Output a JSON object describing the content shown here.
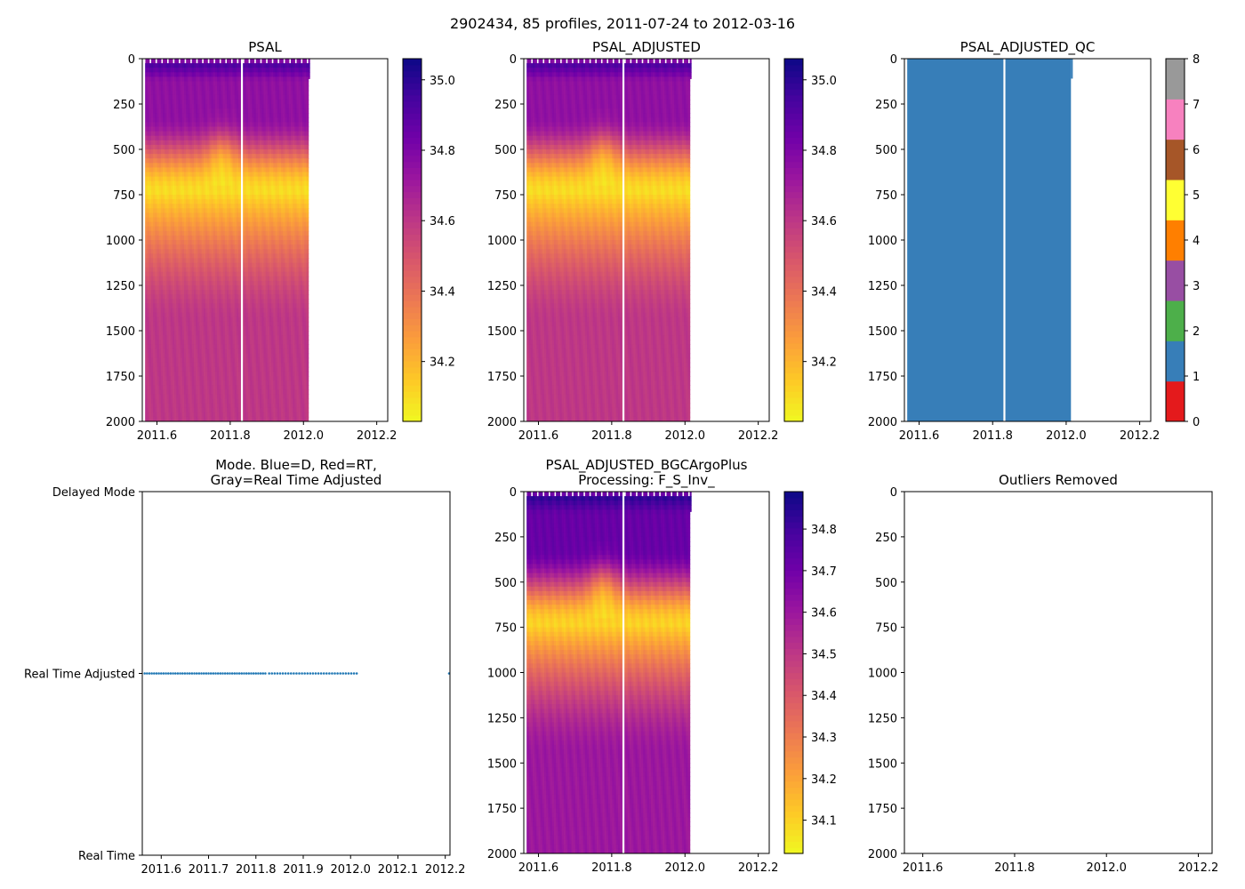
{
  "suptitle": "2902434, 85 profiles, 2011-07-24 to 2012-03-16",
  "colors": {
    "plasma": [
      "#0d0887",
      "#46039f",
      "#7201a8",
      "#9c179e",
      "#bd3786",
      "#d8576b",
      "#ed7953",
      "#fb9f3a",
      "#fdca26",
      "#f0f921"
    ],
    "qc": [
      "#e41a1c",
      "#377eb8",
      "#4daf4a",
      "#984ea3",
      "#ff7f00",
      "#ffff33",
      "#a65628",
      "#f781bf",
      "#999999"
    ],
    "mode_point": "#1f77b4",
    "gap_line": "#ffffff"
  },
  "chart_data": [
    {
      "id": "psal",
      "type": "heatmap",
      "title": "PSAL",
      "x_ticks": [
        "2011.6",
        "2011.8",
        "2012.0",
        "2012.2"
      ],
      "x_tick_values": [
        2011.6,
        2011.8,
        2012.0,
        2012.2
      ],
      "xlim": [
        2011.56,
        2012.23
      ],
      "y_ticks": [
        "0",
        "250",
        "500",
        "750",
        "1000",
        "1250",
        "1500",
        "1750",
        "2000"
      ],
      "y_tick_values": [
        0,
        250,
        500,
        750,
        1000,
        1250,
        1500,
        1750,
        2000
      ],
      "ylim": [
        2000,
        0
      ],
      "data_extent": {
        "x_start": 2011.563,
        "x_end": 2012.013,
        "x_end_shallow": 2012.018,
        "shallow_depth": 110,
        "gaps": [
          2011.565,
          2011.832
        ]
      },
      "colorbar": {
        "cmap": "plasma_r",
        "vmin": 34.03,
        "vmax": 35.06,
        "ticks": [
          "34.2",
          "34.4",
          "34.6",
          "34.8",
          "35.0"
        ],
        "tick_values": [
          34.2,
          34.4,
          34.6,
          34.8,
          35.0
        ]
      },
      "profile_structure": {
        "surface": 34.55,
        "near_surface_max": 34.95,
        "shoulder": 34.75,
        "minimum": 34.1,
        "minimum_depth": 740,
        "deep": 34.6
      }
    },
    {
      "id": "psal_adjusted",
      "type": "heatmap",
      "title": "PSAL_ADJUSTED",
      "x_ticks": [
        "2011.6",
        "2011.8",
        "2012.0",
        "2012.2"
      ],
      "x_tick_values": [
        2011.6,
        2011.8,
        2012.0,
        2012.2
      ],
      "xlim": [
        2011.56,
        2012.23
      ],
      "y_ticks": [
        "0",
        "250",
        "500",
        "750",
        "1000",
        "1250",
        "1500",
        "1750",
        "2000"
      ],
      "y_tick_values": [
        0,
        250,
        500,
        750,
        1000,
        1250,
        1500,
        1750,
        2000
      ],
      "ylim": [
        2000,
        0
      ],
      "data_extent": {
        "x_start": 2011.563,
        "x_end": 2012.013,
        "x_end_shallow": 2012.018,
        "shallow_depth": 110,
        "gaps": [
          2011.565,
          2011.832
        ]
      },
      "colorbar": {
        "cmap": "plasma_r",
        "vmin": 34.03,
        "vmax": 35.06,
        "ticks": [
          "34.2",
          "34.4",
          "34.6",
          "34.8",
          "35.0"
        ],
        "tick_values": [
          34.2,
          34.4,
          34.6,
          34.8,
          35.0
        ]
      },
      "profile_structure": {
        "surface": 34.55,
        "near_surface_max": 34.95,
        "shoulder": 34.75,
        "minimum": 34.1,
        "minimum_depth": 740,
        "deep": 34.6
      }
    },
    {
      "id": "psal_adjusted_qc",
      "type": "heatmap",
      "title": "PSAL_ADJUSTED_QC",
      "x_ticks": [
        "2011.6",
        "2011.8",
        "2012.0",
        "2012.2"
      ],
      "x_tick_values": [
        2011.6,
        2011.8,
        2012.0,
        2012.2
      ],
      "xlim": [
        2011.56,
        2012.23
      ],
      "y_ticks": [
        "0",
        "250",
        "500",
        "750",
        "1000",
        "1250",
        "1500",
        "1750",
        "2000"
      ],
      "y_tick_values": [
        0,
        250,
        500,
        750,
        1000,
        1250,
        1500,
        1750,
        2000
      ],
      "ylim": [
        2000,
        0
      ],
      "data_extent": {
        "x_start": 2011.563,
        "x_end": 2012.013,
        "x_end_shallow": 2012.018,
        "shallow_depth": 110,
        "gaps": [
          2011.565,
          2011.832
        ]
      },
      "qc_value": 1,
      "colorbar": {
        "cmap": "qualitative",
        "vmin": 0,
        "vmax": 8,
        "ticks": [
          "0",
          "1",
          "2",
          "3",
          "4",
          "5",
          "6",
          "7",
          "8"
        ],
        "tick_values": [
          0,
          1,
          2,
          3,
          4,
          5,
          6,
          7,
          8
        ]
      }
    },
    {
      "id": "mode",
      "type": "scatter",
      "title_lines": [
        "Mode. Blue=D, Red=RT,",
        "Gray=Real Time Adjusted"
      ],
      "x_ticks": [
        "2011.6",
        "2011.7",
        "2011.8",
        "2011.9",
        "2012.0",
        "2012.1",
        "2012.2"
      ],
      "x_tick_values": [
        2011.6,
        2011.7,
        2011.8,
        2011.9,
        2012.0,
        2012.1,
        2012.2
      ],
      "xlim": [
        2011.56,
        2012.21
      ],
      "y_ticks": [
        "Delayed Mode",
        "Real Time Adjusted",
        "Real Time"
      ],
      "y_tick_values": [
        1,
        0.5,
        0
      ],
      "ylim": [
        0,
        1
      ],
      "point_level": 0.5,
      "point_runs": [
        {
          "start": 2011.565,
          "end": 2011.82,
          "count": 52
        },
        {
          "start": 2011.828,
          "end": 2012.013,
          "count": 33
        }
      ],
      "extra_points": [
        2012.21
      ]
    },
    {
      "id": "psal_bgc",
      "type": "heatmap",
      "title_lines": [
        "PSAL_ADJUSTED_BGCArgoPlus",
        "Processing: F_S_Inv_"
      ],
      "x_ticks": [
        "2011.6",
        "2011.8",
        "2012.0",
        "2012.2"
      ],
      "x_tick_values": [
        2011.6,
        2011.8,
        2012.0,
        2012.2
      ],
      "xlim": [
        2011.56,
        2012.23
      ],
      "y_ticks": [
        "0",
        "250",
        "500",
        "750",
        "1000",
        "1250",
        "1500",
        "1750",
        "2000"
      ],
      "y_tick_values": [
        0,
        250,
        500,
        750,
        1000,
        1250,
        1500,
        1750,
        2000
      ],
      "ylim": [
        2000,
        0
      ],
      "data_extent": {
        "x_start": 2011.563,
        "x_end": 2012.013,
        "x_end_shallow": 2012.018,
        "shallow_depth": 110,
        "gaps": [
          2011.565,
          2011.832
        ]
      },
      "colorbar": {
        "cmap": "plasma_r",
        "vmin": 34.02,
        "vmax": 34.89,
        "ticks": [
          "34.1",
          "34.2",
          "34.3",
          "34.4",
          "34.5",
          "34.6",
          "34.7",
          "34.8"
        ],
        "tick_values": [
          34.1,
          34.2,
          34.3,
          34.4,
          34.5,
          34.6,
          34.7,
          34.8
        ]
      },
      "profile_structure": {
        "surface": 34.5,
        "near_surface_max": 34.85,
        "shoulder": 34.72,
        "minimum": 34.1,
        "minimum_depth": 740,
        "deep": 34.6
      }
    },
    {
      "id": "outliers",
      "type": "scatter",
      "title": "Outliers Removed",
      "x_ticks": [
        "2011.6",
        "2011.8",
        "2012.0",
        "2012.2"
      ],
      "x_tick_values": [
        2011.6,
        2011.8,
        2012.0,
        2012.2
      ],
      "xlim": [
        2011.56,
        2012.23
      ],
      "y_ticks": [
        "0",
        "250",
        "500",
        "750",
        "1000",
        "1250",
        "1500",
        "1750",
        "2000"
      ],
      "y_tick_values": [
        0,
        250,
        500,
        750,
        1000,
        1250,
        1500,
        1750,
        2000
      ],
      "ylim": [
        2000,
        0
      ]
    }
  ]
}
